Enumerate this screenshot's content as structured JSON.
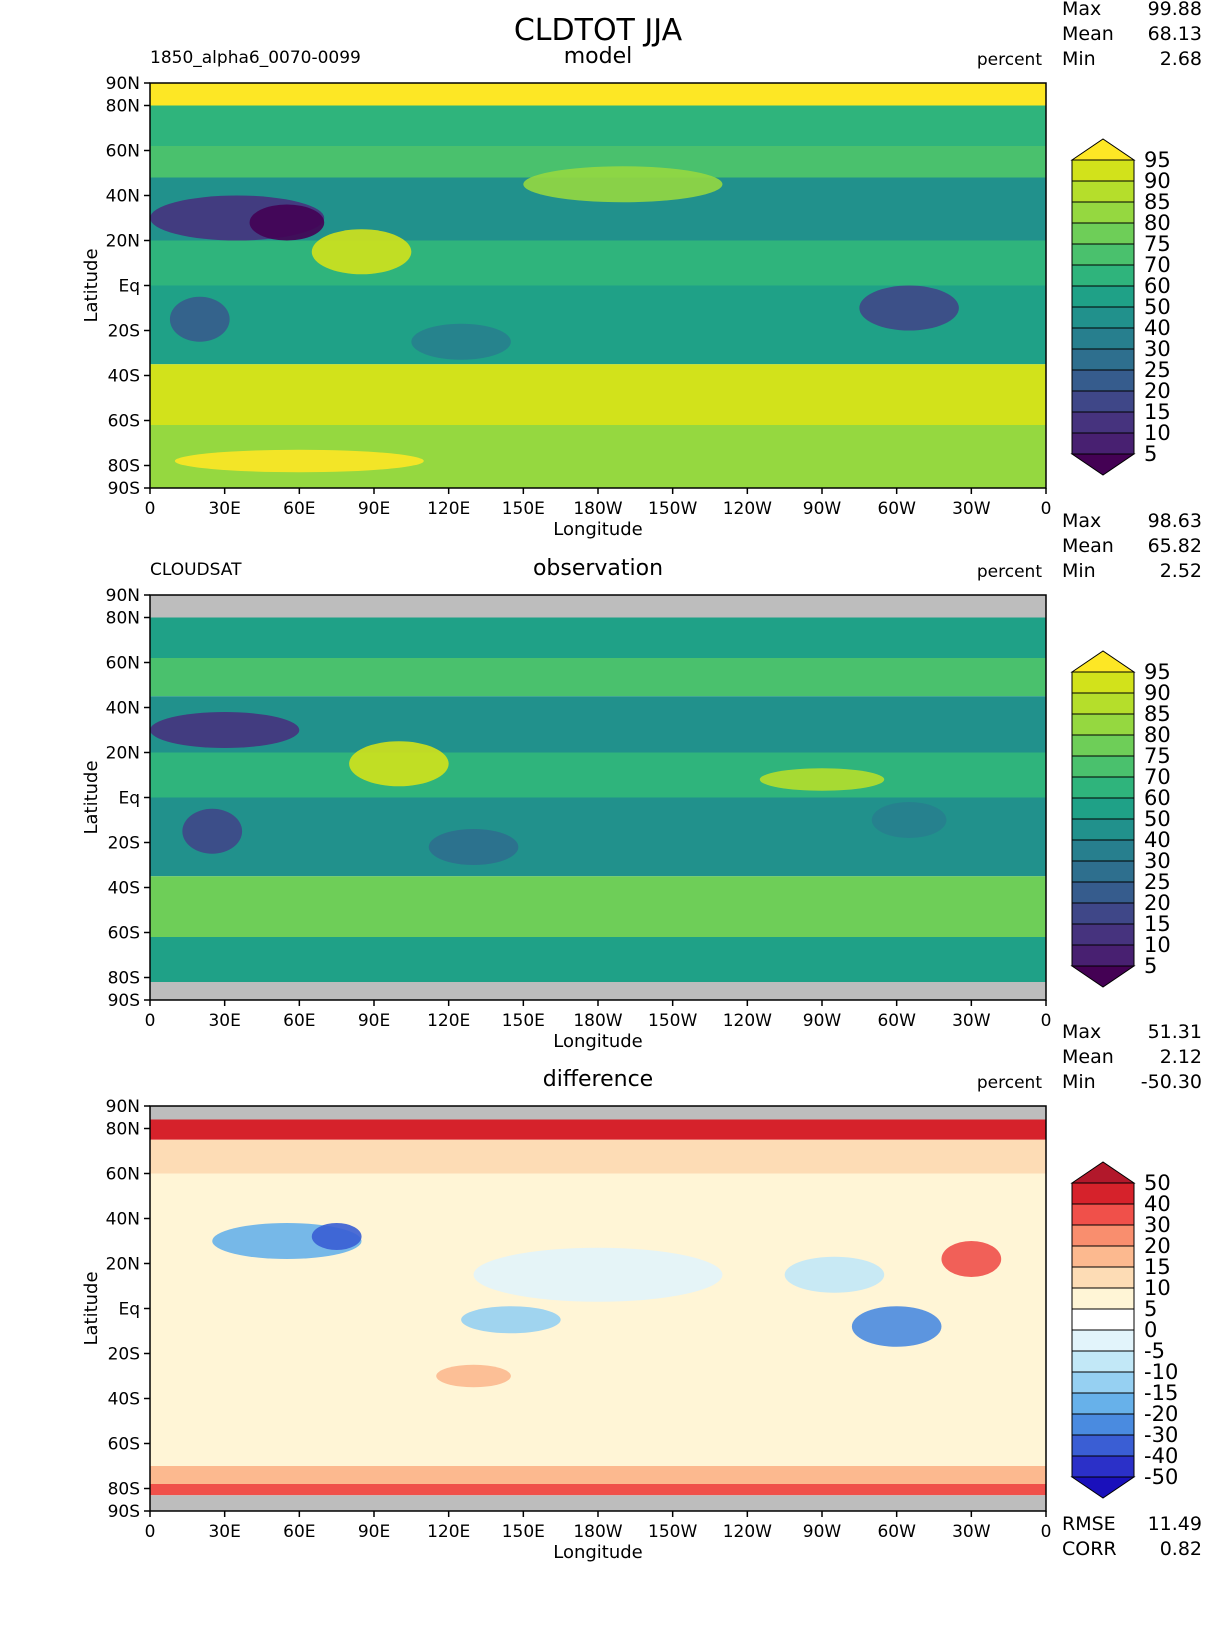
{
  "title": "CLDTOT JJA",
  "chart_data": {
    "type": "heatmap",
    "title": "CLDTOT JJA",
    "x_tick_labels": [
      "0",
      "30E",
      "60E",
      "90E",
      "120E",
      "150E",
      "180W",
      "150W",
      "120W",
      "90W",
      "60W",
      "30W",
      "0"
    ],
    "y_tick_labels": [
      "90N",
      "80N",
      "60N",
      "40N",
      "20N",
      "Eq",
      "20S",
      "40S",
      "60S",
      "80S",
      "90S"
    ],
    "y_tick_lats": [
      90,
      80,
      60,
      40,
      20,
      0,
      -20,
      -40,
      -60,
      -80,
      -90
    ],
    "xlabel": "Longitude",
    "ylabel": "Latitude",
    "panels": [
      {
        "id": "model",
        "left_label": "1850_alpha6_0070-0099",
        "center_label": "model",
        "units": "percent",
        "stats": [
          {
            "name": "Max",
            "value": "99.88"
          },
          {
            "name": "Mean",
            "value": "68.13"
          },
          {
            "name": "Min",
            "value": "2.68"
          }
        ],
        "levels": [
          "95",
          "90",
          "85",
          "80",
          "75",
          "70",
          "60",
          "50",
          "40",
          "30",
          "25",
          "20",
          "15",
          "10",
          "5"
        ],
        "colorbar": [
          "#fde725",
          "#d2e21b",
          "#b5de2b",
          "#95d840",
          "#6ece58",
          "#4ac16d",
          "#2fb47c",
          "#1fa187",
          "#21918c",
          "#277f8e",
          "#2e6f8e",
          "#365c8d",
          "#3f4788",
          "#46337e",
          "#482071",
          "#440154"
        ],
        "missing_band_lats": [],
        "bands": [
          {
            "lat": [
              80,
              90
            ],
            "color": "#fde725"
          },
          {
            "lat": [
              62,
              80
            ],
            "color": "#2fb47c"
          },
          {
            "lat": [
              48,
              62
            ],
            "color": "#4ac16d"
          },
          {
            "lat": [
              20,
              48
            ],
            "color": "#21918c"
          },
          {
            "lat": [
              0,
              20
            ],
            "color": "#2fb47c"
          },
          {
            "lat": [
              -35,
              0
            ],
            "color": "#1fa187"
          },
          {
            "lat": [
              -62,
              -35
            ],
            "color": "#d2e21b"
          },
          {
            "lat": [
              -90,
              -62
            ],
            "color": "#95d840"
          }
        ],
        "blobs": [
          {
            "lon": 35,
            "lat": 30,
            "rx": 35,
            "ry": 10,
            "color": "#46337e"
          },
          {
            "lon": 55,
            "lat": 28,
            "rx": 15,
            "ry": 8,
            "color": "#440154"
          },
          {
            "lon": 20,
            "lat": -15,
            "rx": 12,
            "ry": 10,
            "color": "#365c8d"
          },
          {
            "lon": 305,
            "lat": -10,
            "rx": 20,
            "ry": 10,
            "color": "#3f4788"
          },
          {
            "lon": 85,
            "lat": 15,
            "rx": 20,
            "ry": 10,
            "color": "#d2e21b"
          },
          {
            "lon": 190,
            "lat": 45,
            "rx": 40,
            "ry": 8,
            "color": "#95d840"
          },
          {
            "lon": 125,
            "lat": -25,
            "rx": 20,
            "ry": 8,
            "color": "#277f8e"
          },
          {
            "lon": 60,
            "lat": -78,
            "rx": 50,
            "ry": 5,
            "color": "#fde725"
          }
        ]
      },
      {
        "id": "observation",
        "left_label": "CLOUDSAT",
        "center_label": "observation",
        "units": "percent",
        "stats": [
          {
            "name": "Max",
            "value": "98.63"
          },
          {
            "name": "Mean",
            "value": "65.82"
          },
          {
            "name": "Min",
            "value": "2.52"
          }
        ],
        "levels": [
          "95",
          "90",
          "85",
          "80",
          "75",
          "70",
          "60",
          "50",
          "40",
          "30",
          "25",
          "20",
          "15",
          "10",
          "5"
        ],
        "colorbar": [
          "#fde725",
          "#d2e21b",
          "#b5de2b",
          "#95d840",
          "#6ece58",
          "#4ac16d",
          "#2fb47c",
          "#1fa187",
          "#21918c",
          "#277f8e",
          "#2e6f8e",
          "#365c8d",
          "#3f4788",
          "#46337e",
          "#482071",
          "#440154"
        ],
        "missing_band_lats": [
          [
            80,
            90
          ],
          [
            -90,
            -82
          ]
        ],
        "bands": [
          {
            "lat": [
              62,
              80
            ],
            "color": "#1fa187"
          },
          {
            "lat": [
              45,
              62
            ],
            "color": "#4ac16d"
          },
          {
            "lat": [
              20,
              45
            ],
            "color": "#21918c"
          },
          {
            "lat": [
              0,
              20
            ],
            "color": "#2fb47c"
          },
          {
            "lat": [
              -35,
              0
            ],
            "color": "#21918c"
          },
          {
            "lat": [
              -62,
              -35
            ],
            "color": "#6ece58"
          },
          {
            "lat": [
              -82,
              -62
            ],
            "color": "#1fa187"
          }
        ],
        "blobs": [
          {
            "lon": 30,
            "lat": 30,
            "rx": 30,
            "ry": 8,
            "color": "#46337e"
          },
          {
            "lon": 25,
            "lat": -15,
            "rx": 12,
            "ry": 10,
            "color": "#3f4788"
          },
          {
            "lon": 130,
            "lat": -22,
            "rx": 18,
            "ry": 8,
            "color": "#2e6f8e"
          },
          {
            "lon": 100,
            "lat": 15,
            "rx": 20,
            "ry": 10,
            "color": "#d2e21b"
          },
          {
            "lon": 270,
            "lat": 8,
            "rx": 25,
            "ry": 5,
            "color": "#b5de2b"
          },
          {
            "lon": 305,
            "lat": -10,
            "rx": 15,
            "ry": 8,
            "color": "#277f8e"
          }
        ]
      },
      {
        "id": "difference",
        "left_label": "",
        "center_label": "difference",
        "units": "percent",
        "stats": [
          {
            "name": "Max",
            "value": "51.31"
          },
          {
            "name": "Mean",
            "value": "2.12"
          },
          {
            "name": "Min",
            "value": "-50.30"
          }
        ],
        "levels": [
          "50",
          "40",
          "30",
          "20",
          "15",
          "10",
          "5",
          "0",
          "-5",
          "-10",
          "-15",
          "-20",
          "-30",
          "-40",
          "-50"
        ],
        "colorbar": [
          "#b2182b",
          "#d6222b",
          "#f0504a",
          "#f98e6e",
          "#fcb98f",
          "#fddcb5",
          "#fff5d6",
          "#ffffff",
          "#e2f4fb",
          "#c2e8f7",
          "#96d0f2",
          "#67b1ea",
          "#4a8be0",
          "#3a5ed4",
          "#2b30c8",
          "#1a10bb"
        ],
        "missing_band_lats": [
          [
            84,
            90
          ],
          [
            -90,
            -83
          ]
        ],
        "bands": [
          {
            "lat": [
              75,
              84
            ],
            "color": "#d6222b"
          },
          {
            "lat": [
              60,
              75
            ],
            "color": "#fddcb5"
          },
          {
            "lat": [
              -70,
              60
            ],
            "color": "#fff5d6"
          },
          {
            "lat": [
              -78,
              -70
            ],
            "color": "#fcb98f"
          },
          {
            "lat": [
              -83,
              -78
            ],
            "color": "#f0504a"
          }
        ],
        "blobs": [
          {
            "lon": 55,
            "lat": 30,
            "rx": 30,
            "ry": 8,
            "color": "#67b1ea"
          },
          {
            "lon": 75,
            "lat": 32,
            "rx": 10,
            "ry": 6,
            "color": "#3a5ed4"
          },
          {
            "lon": 300,
            "lat": -8,
            "rx": 18,
            "ry": 9,
            "color": "#4a8be0"
          },
          {
            "lon": 330,
            "lat": 22,
            "rx": 12,
            "ry": 8,
            "color": "#f0504a"
          },
          {
            "lon": 145,
            "lat": -5,
            "rx": 20,
            "ry": 6,
            "color": "#96d0f2"
          },
          {
            "lon": 130,
            "lat": -30,
            "rx": 15,
            "ry": 5,
            "color": "#fcb98f"
          },
          {
            "lon": 180,
            "lat": 15,
            "rx": 50,
            "ry": 12,
            "color": "#e2f4fb"
          },
          {
            "lon": 275,
            "lat": 15,
            "rx": 20,
            "ry": 8,
            "color": "#c2e8f7"
          }
        ]
      }
    ],
    "footer_stats": [
      {
        "name": "RMSE",
        "value": "11.49"
      },
      {
        "name": "CORR",
        "value": "0.82"
      }
    ]
  }
}
